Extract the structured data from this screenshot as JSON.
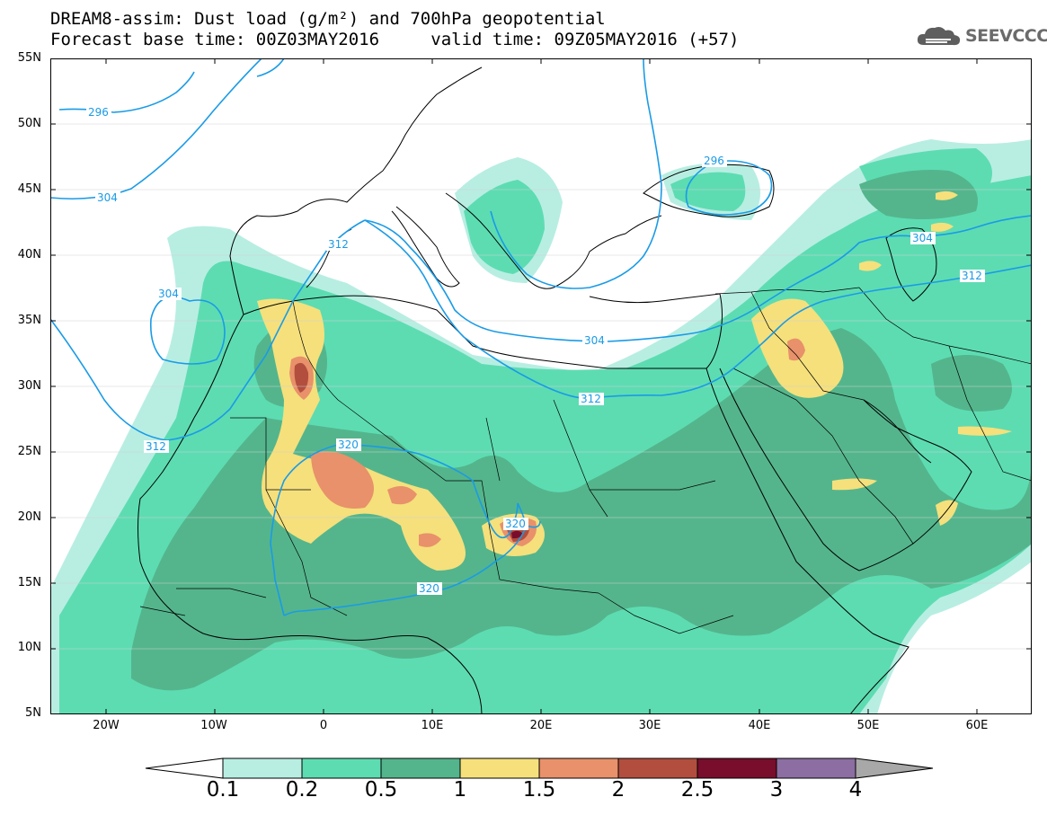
{
  "title": {
    "line1": "DREAM8-assim: Dust load (g/m²) and 700hPa geopotential",
    "line2_base": "Forecast base time: 00Z03MAY2016",
    "line2_valid": "valid time: 09Z05MAY2016 (+57)"
  },
  "logo": {
    "text": "SEEVCCC",
    "icon": "cloud-logo-icon"
  },
  "axes": {
    "lat_labels": [
      "55N",
      "50N",
      "45N",
      "40N",
      "35N",
      "30N",
      "25N",
      "20N",
      "15N",
      "10N",
      "5N"
    ],
    "lon_labels": [
      "20W",
      "10W",
      "0",
      "10E",
      "20E",
      "30E",
      "40E",
      "50E",
      "60E"
    ]
  },
  "contours": {
    "labels": [
      "296",
      "296",
      "304",
      "304",
      "304",
      "304",
      "312",
      "312",
      "312",
      "312",
      "320",
      "320",
      "320"
    ],
    "color": "#1a9be6"
  },
  "colorbar": {
    "labels": [
      "0.1",
      "0.2",
      "0.5",
      "1",
      "1.5",
      "2",
      "2.5",
      "3",
      "4"
    ],
    "colors": [
      "#ffffff",
      "#b8eee2",
      "#5ddcb2",
      "#54b58c",
      "#f5e07c",
      "#e8916a",
      "#b24e3e",
      "#780e2c",
      "#8c6ea2",
      "#a8a8a8"
    ]
  }
}
